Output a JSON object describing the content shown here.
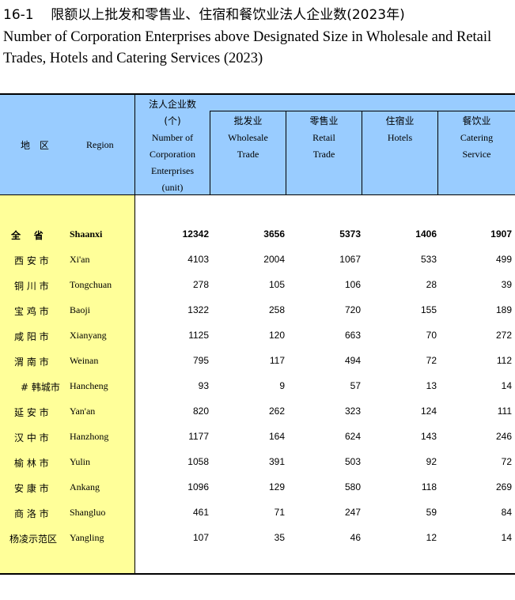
{
  "title": {
    "number": "16-1",
    "cn": "限额以上批发和零售业、住宿和餐饮业法人企业数(2023年)",
    "en": "Number of Corporation Enterprises above Designated Size in Wholesale and Retail Trades, Hotels and Catering Services (2023)"
  },
  "header": {
    "region_cn": "地 区",
    "region_en": "Region",
    "total_cn": "法人企业数",
    "total_unit_cn": "(个)",
    "total_en_1": "Number of",
    "total_en_2": "Corporation",
    "total_en_3": "Enterprises",
    "total_en_4": "(unit)",
    "columns": [
      {
        "cn": "批发业",
        "en1": "Wholesale",
        "en2": "Trade"
      },
      {
        "cn": "零售业",
        "en1": "Retail",
        "en2": "Trade"
      },
      {
        "cn": "住宿业",
        "en1": "Hotels",
        "en2": ""
      },
      {
        "cn": "餐饮业",
        "en1": "Catering",
        "en2": "Service"
      }
    ]
  },
  "rows": [
    {
      "cn": "全    省",
      "en": "Shaanxi",
      "total": "12342",
      "wholesale": "3656",
      "retail": "5373",
      "hotels": "1406",
      "catering": "1907"
    },
    {
      "cn": "西 安 市",
      "en": "Xi'an",
      "total": "4103",
      "wholesale": "2004",
      "retail": "1067",
      "hotels": "533",
      "catering": "499"
    },
    {
      "cn": "铜 川 市",
      "en": "Tongchuan",
      "total": "278",
      "wholesale": "105",
      "retail": "106",
      "hotels": "28",
      "catering": "39"
    },
    {
      "cn": "宝 鸡 市",
      "en": "Baoji",
      "total": "1322",
      "wholesale": "258",
      "retail": "720",
      "hotels": "155",
      "catering": "189"
    },
    {
      "cn": "咸 阳 市",
      "en": "Xianyang",
      "total": "1125",
      "wholesale": "120",
      "retail": "663",
      "hotels": "70",
      "catering": "272"
    },
    {
      "cn": "渭 南 市",
      "en": "Weinan",
      "total": "795",
      "wholesale": "117",
      "retail": "494",
      "hotels": "72",
      "catering": "112"
    },
    {
      "cn": "# 韩城市",
      "en": "Hancheng",
      "total": "93",
      "wholesale": "9",
      "retail": "57",
      "hotels": "13",
      "catering": "14"
    },
    {
      "cn": "延 安 市",
      "en": "Yan'an",
      "total": "820",
      "wholesale": "262",
      "retail": "323",
      "hotels": "124",
      "catering": "111"
    },
    {
      "cn": "汉 中 市",
      "en": "Hanzhong",
      "total": "1177",
      "wholesale": "164",
      "retail": "624",
      "hotels": "143",
      "catering": "246"
    },
    {
      "cn": "榆 林 市",
      "en": "Yulin",
      "total": "1058",
      "wholesale": "391",
      "retail": "503",
      "hotels": "92",
      "catering": "72"
    },
    {
      "cn": "安 康 市",
      "en": "Ankang",
      "total": "1096",
      "wholesale": "129",
      "retail": "580",
      "hotels": "118",
      "catering": "269"
    },
    {
      "cn": "商 洛 市",
      "en": "Shangluo",
      "total": "461",
      "wholesale": "71",
      "retail": "247",
      "hotels": "59",
      "catering": "84"
    },
    {
      "cn": "杨凌示范区",
      "en": "Yangling",
      "total": "107",
      "wholesale": "35",
      "retail": "46",
      "hotels": "12",
      "catering": "14"
    }
  ]
}
